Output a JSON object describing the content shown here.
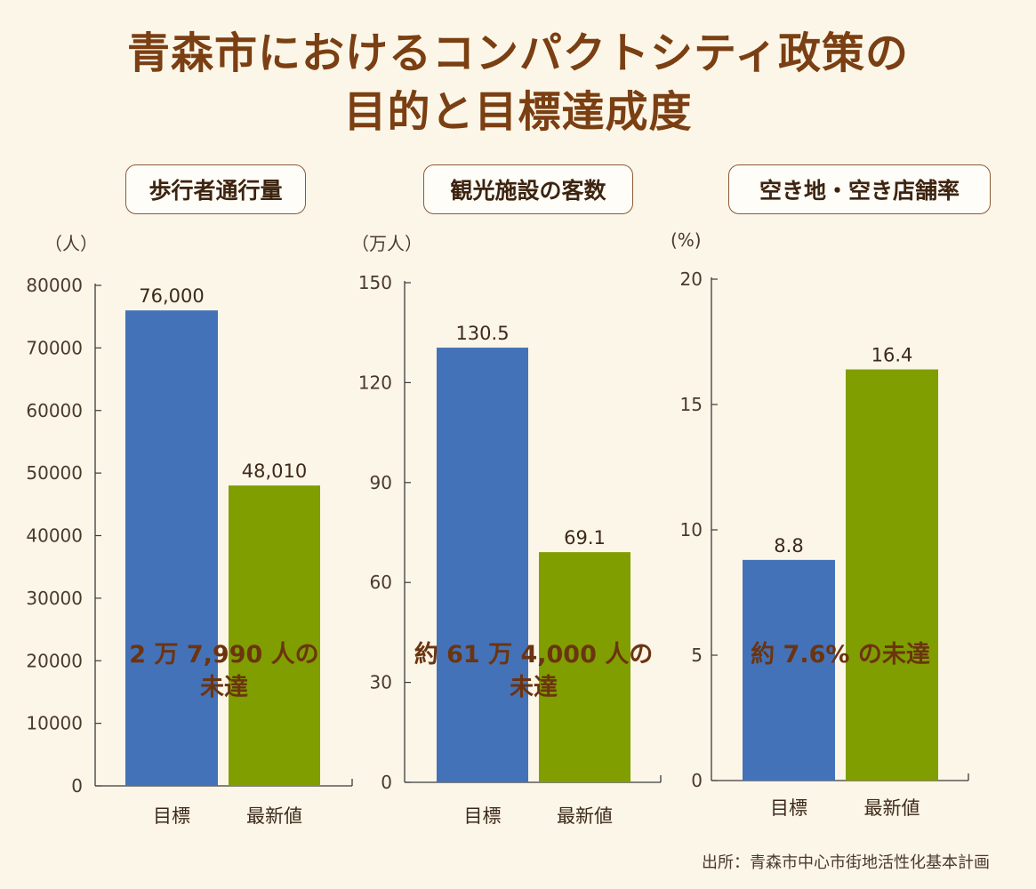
{
  "title": {
    "line1": "青森市におけるコンパクトシティ政策の",
    "line2": "目的と目標達成度"
  },
  "source": "出所：青森市中心市街地活性化基本計画",
  "colors": {
    "target": "#4472b8",
    "latest": "#809e00",
    "title": "#7a3f12",
    "annotation": "#6b3410"
  },
  "chart_data": [
    {
      "type": "bar",
      "title": "歩行者通行量",
      "unit": "（人）",
      "categories": [
        "目標",
        "最新値"
      ],
      "values": [
        76000,
        48010
      ],
      "value_labels": [
        "76,000",
        "48,010"
      ],
      "ylim": [
        0,
        80000
      ],
      "ticks": [
        0,
        10000,
        20000,
        30000,
        40000,
        50000,
        60000,
        70000,
        80000
      ],
      "annotation": [
        "2 万 7,990 人の",
        "未達"
      ]
    },
    {
      "type": "bar",
      "title": "観光施設の客数",
      "unit": "（万人）",
      "categories": [
        "目標",
        "最新値"
      ],
      "values": [
        130.5,
        69.1
      ],
      "value_labels": [
        "130.5",
        "69.1"
      ],
      "ylim": [
        0,
        150
      ],
      "ticks": [
        0,
        30,
        60,
        90,
        120,
        150
      ],
      "annotation": [
        "約 61 万 4,000 人の",
        "未達"
      ]
    },
    {
      "type": "bar",
      "title": "空き地・空き店舗率",
      "unit": "(%)",
      "categories": [
        "目標",
        "最新値"
      ],
      "values": [
        8.8,
        16.4
      ],
      "value_labels": [
        "8.8",
        "16.4"
      ],
      "ylim": [
        0,
        20
      ],
      "ticks": [
        0,
        5,
        10,
        15,
        20
      ],
      "annotation": [
        "約 7.6% の未達"
      ]
    }
  ]
}
